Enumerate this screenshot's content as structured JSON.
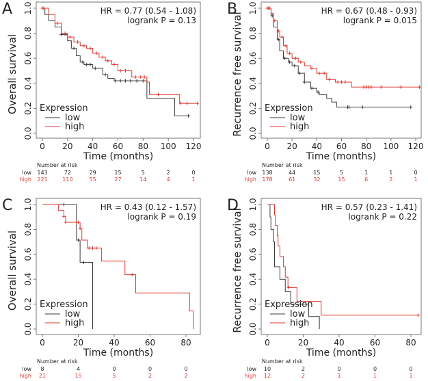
{
  "colors": {
    "low": "#3a3a3a",
    "high": "#e0352f",
    "axis": "#777777"
  },
  "chart_data": [
    {
      "panel": "A",
      "type": "line",
      "subtype": "kaplan-meier",
      "ylabel": "Overall survival",
      "xlabel": "Time (months)",
      "xlim": [
        0,
        125
      ],
      "ylim": [
        0,
        1
      ],
      "xticks": [
        0,
        20,
        40,
        60,
        80,
        100,
        120
      ],
      "yticks": [
        "0.0",
        "0.2",
        "0.4",
        "0.6",
        "0.8",
        "1.0"
      ],
      "hr": "HR = 0.77 (0.54 - 1.08)",
      "logrank": "logrank P = 0.13",
      "legend": {
        "title": "Expression",
        "position": "bottom-left"
      },
      "series": [
        {
          "name": "low",
          "steps": [
            [
              0,
              1
            ],
            [
              2,
              0.95
            ],
            [
              5,
              0.9
            ],
            [
              10,
              0.85
            ],
            [
              15,
              0.79
            ],
            [
              20,
              0.74
            ],
            [
              23,
              0.68
            ],
            [
              27,
              0.62
            ],
            [
              30,
              0.57
            ],
            [
              33,
              0.55
            ],
            [
              40,
              0.52
            ],
            [
              48,
              0.47
            ],
            [
              52,
              0.44
            ],
            [
              57,
              0.42
            ],
            [
              83,
              0.28
            ],
            [
              105,
              0.14
            ]
          ],
          "end": 116,
          "censor": [
            15,
            18,
            25,
            32,
            35,
            38,
            42,
            50,
            58,
            62,
            66,
            70,
            75,
            80,
            116
          ]
        },
        {
          "name": "high",
          "steps": [
            [
              0,
              1
            ],
            [
              5,
              0.95
            ],
            [
              10,
              0.88
            ],
            [
              15,
              0.8
            ],
            [
              20,
              0.77
            ],
            [
              25,
              0.73
            ],
            [
              30,
              0.7
            ],
            [
              35,
              0.68
            ],
            [
              40,
              0.64
            ],
            [
              45,
              0.61
            ],
            [
              50,
              0.58
            ],
            [
              55,
              0.55
            ],
            [
              60,
              0.5
            ],
            [
              71,
              0.45
            ],
            [
              83,
              0.41
            ],
            [
              85,
              0.31
            ],
            [
              109,
              0.24
            ]
          ],
          "end": 123,
          "censor": [
            0,
            1,
            12,
            18,
            22,
            28,
            33,
            38,
            43,
            48,
            52,
            57,
            62,
            66,
            74,
            78,
            81,
            92,
            110,
            115,
            123
          ]
        }
      ],
      "risk": {
        "title": "Number at risk",
        "times": [
          0,
          20,
          40,
          60,
          80,
          100,
          120
        ],
        "low": [
          143,
          72,
          29,
          15,
          5,
          2,
          0
        ],
        "high": [
          221,
          110,
          55,
          27,
          14,
          4,
          1
        ]
      }
    },
    {
      "panel": "B",
      "type": "line",
      "subtype": "kaplan-meier",
      "ylabel": "Recurrence free survival",
      "xlabel": "Time (months)",
      "xlim": [
        0,
        125
      ],
      "ylim": [
        0,
        1
      ],
      "xticks": [
        0,
        20,
        40,
        60,
        80,
        100,
        120
      ],
      "yticks": [
        "0.0",
        "0.2",
        "0.4",
        "0.6",
        "0.8",
        "1.0"
      ],
      "hr": "HR = 0.67 (0.48 - 0.93)",
      "logrank": "logrank P = 0.015",
      "legend": {
        "title": "Expression",
        "position": "bottom-left"
      },
      "series": [
        {
          "name": "low",
          "steps": [
            [
              0,
              1
            ],
            [
              3,
              0.94
            ],
            [
              5,
              0.85
            ],
            [
              8,
              0.75
            ],
            [
              10,
              0.66
            ],
            [
              13,
              0.6
            ],
            [
              17,
              0.57
            ],
            [
              20,
              0.54
            ],
            [
              25,
              0.48
            ],
            [
              30,
              0.41
            ],
            [
              35,
              0.36
            ],
            [
              40,
              0.33
            ],
            [
              42,
              0.31
            ],
            [
              48,
              0.28
            ],
            [
              52,
              0.25
            ],
            [
              56,
              0.21
            ]
          ],
          "end": 116,
          "censor": [
            4,
            9,
            14,
            18,
            22,
            26,
            30,
            36,
            41,
            65,
            66,
            77,
            116
          ]
        },
        {
          "name": "high",
          "steps": [
            [
              0,
              1
            ],
            [
              3,
              0.96
            ],
            [
              5,
              0.9
            ],
            [
              8,
              0.82
            ],
            [
              10,
              0.77
            ],
            [
              13,
              0.7
            ],
            [
              16,
              0.64
            ],
            [
              20,
              0.6
            ],
            [
              25,
              0.57
            ],
            [
              30,
              0.54
            ],
            [
              35,
              0.52
            ],
            [
              40,
              0.48
            ],
            [
              48,
              0.43
            ],
            [
              55,
              0.41
            ],
            [
              68,
              0.37
            ]
          ],
          "end": 123,
          "censor": [
            0,
            1,
            2,
            6,
            9,
            12,
            15,
            18,
            23,
            27,
            36,
            42,
            46,
            50,
            57,
            60,
            63,
            78,
            80,
            82,
            84,
            92,
            108,
            123
          ]
        }
      ],
      "risk": {
        "title": "Number at risk",
        "times": [
          0,
          20,
          40,
          60,
          80,
          100,
          120
        ],
        "low": [
          138,
          44,
          15,
          5,
          1,
          1,
          0
        ],
        "high": [
          178,
          61,
          32,
          15,
          6,
          2,
          1
        ]
      }
    },
    {
      "panel": "C",
      "type": "line",
      "subtype": "kaplan-meier",
      "ylabel": "Overall survival",
      "xlabel": "Time (months)",
      "xlim": [
        0,
        88
      ],
      "ylim": [
        0,
        1
      ],
      "xticks": [
        0,
        20,
        40,
        60,
        80
      ],
      "yticks": [
        "0.0",
        "0.2",
        "0.4",
        "0.6",
        "0.8",
        "1.0"
      ],
      "hr": "HR = 0.43 (0.12 - 1.57)",
      "logrank": "logrank P = 0.19",
      "legend": {
        "title": "Expression",
        "position": "bottom-left"
      },
      "series": [
        {
          "name": "low",
          "steps": [
            [
              0,
              1
            ],
            [
              19,
              0.714
            ],
            [
              21,
              0.536
            ],
            [
              28,
              0
            ]
          ],
          "end": 28,
          "censor": [
            12,
            20,
            23
          ]
        },
        {
          "name": "high",
          "steps": [
            [
              0,
              1
            ],
            [
              9,
              0.952
            ],
            [
              12,
              0.905
            ],
            [
              13,
              0.857
            ],
            [
              21,
              0.81
            ],
            [
              22,
              0.714
            ],
            [
              25,
              0.65
            ],
            [
              33,
              0.545
            ],
            [
              46,
              0.436
            ],
            [
              52,
              0.29
            ],
            [
              82,
              0.145
            ],
            [
              84,
              0
            ]
          ],
          "end": 84,
          "censor": [
            12,
            13,
            19,
            20,
            21,
            26,
            28,
            30,
            50
          ]
        }
      ],
      "risk": {
        "title": "Number at risk",
        "times": [
          0,
          20,
          40,
          60,
          80
        ],
        "low": [
          8,
          4,
          0,
          0,
          0
        ],
        "high": [
          21,
          15,
          5,
          2,
          2
        ]
      }
    },
    {
      "panel": "D",
      "type": "line",
      "subtype": "kaplan-meier",
      "ylabel": "Recurrence free survival",
      "xlabel": "Time (months)",
      "xlim": [
        0,
        88
      ],
      "ylim": [
        0,
        1
      ],
      "xticks": [
        0,
        20,
        40,
        60,
        80
      ],
      "yticks": [
        "0.0",
        "0.2",
        "0.4",
        "0.6",
        "0.8",
        "1.0"
      ],
      "hr": "HR = 0.57 (0.23 - 1.41)",
      "logrank": "logrank P = 0.22",
      "legend": {
        "title": "Expression",
        "position": "bottom-left"
      },
      "series": [
        {
          "name": "low",
          "steps": [
            [
              0,
              1
            ],
            [
              1.5,
              0.9
            ],
            [
              2,
              0.8
            ],
            [
              3.5,
              0.7
            ],
            [
              4,
              0.5
            ],
            [
              7,
              0.4
            ],
            [
              10,
              0.3
            ],
            [
              13,
              0.2
            ],
            [
              23,
              0.1
            ],
            [
              29,
              0
            ]
          ],
          "end": 29,
          "censor": []
        },
        {
          "name": "high",
          "steps": [
            [
              0,
              1
            ],
            [
              4,
              0.917
            ],
            [
              4.5,
              0.833
            ],
            [
              5.5,
              0.75
            ],
            [
              6,
              0.667
            ],
            [
              7,
              0.583
            ],
            [
              9,
              0.5
            ],
            [
              10,
              0.417
            ],
            [
              11.5,
              0.333
            ],
            [
              16.5,
              0.222
            ],
            [
              30,
              0.111
            ]
          ],
          "end": 84,
          "censor": [
            12,
            84
          ]
        }
      ],
      "risk": {
        "title": "Number at risk",
        "times": [
          0,
          20,
          40,
          60,
          80
        ],
        "low": [
          10,
          2,
          0,
          0,
          0
        ],
        "high": [
          12,
          2,
          1,
          1,
          1
        ]
      }
    }
  ]
}
